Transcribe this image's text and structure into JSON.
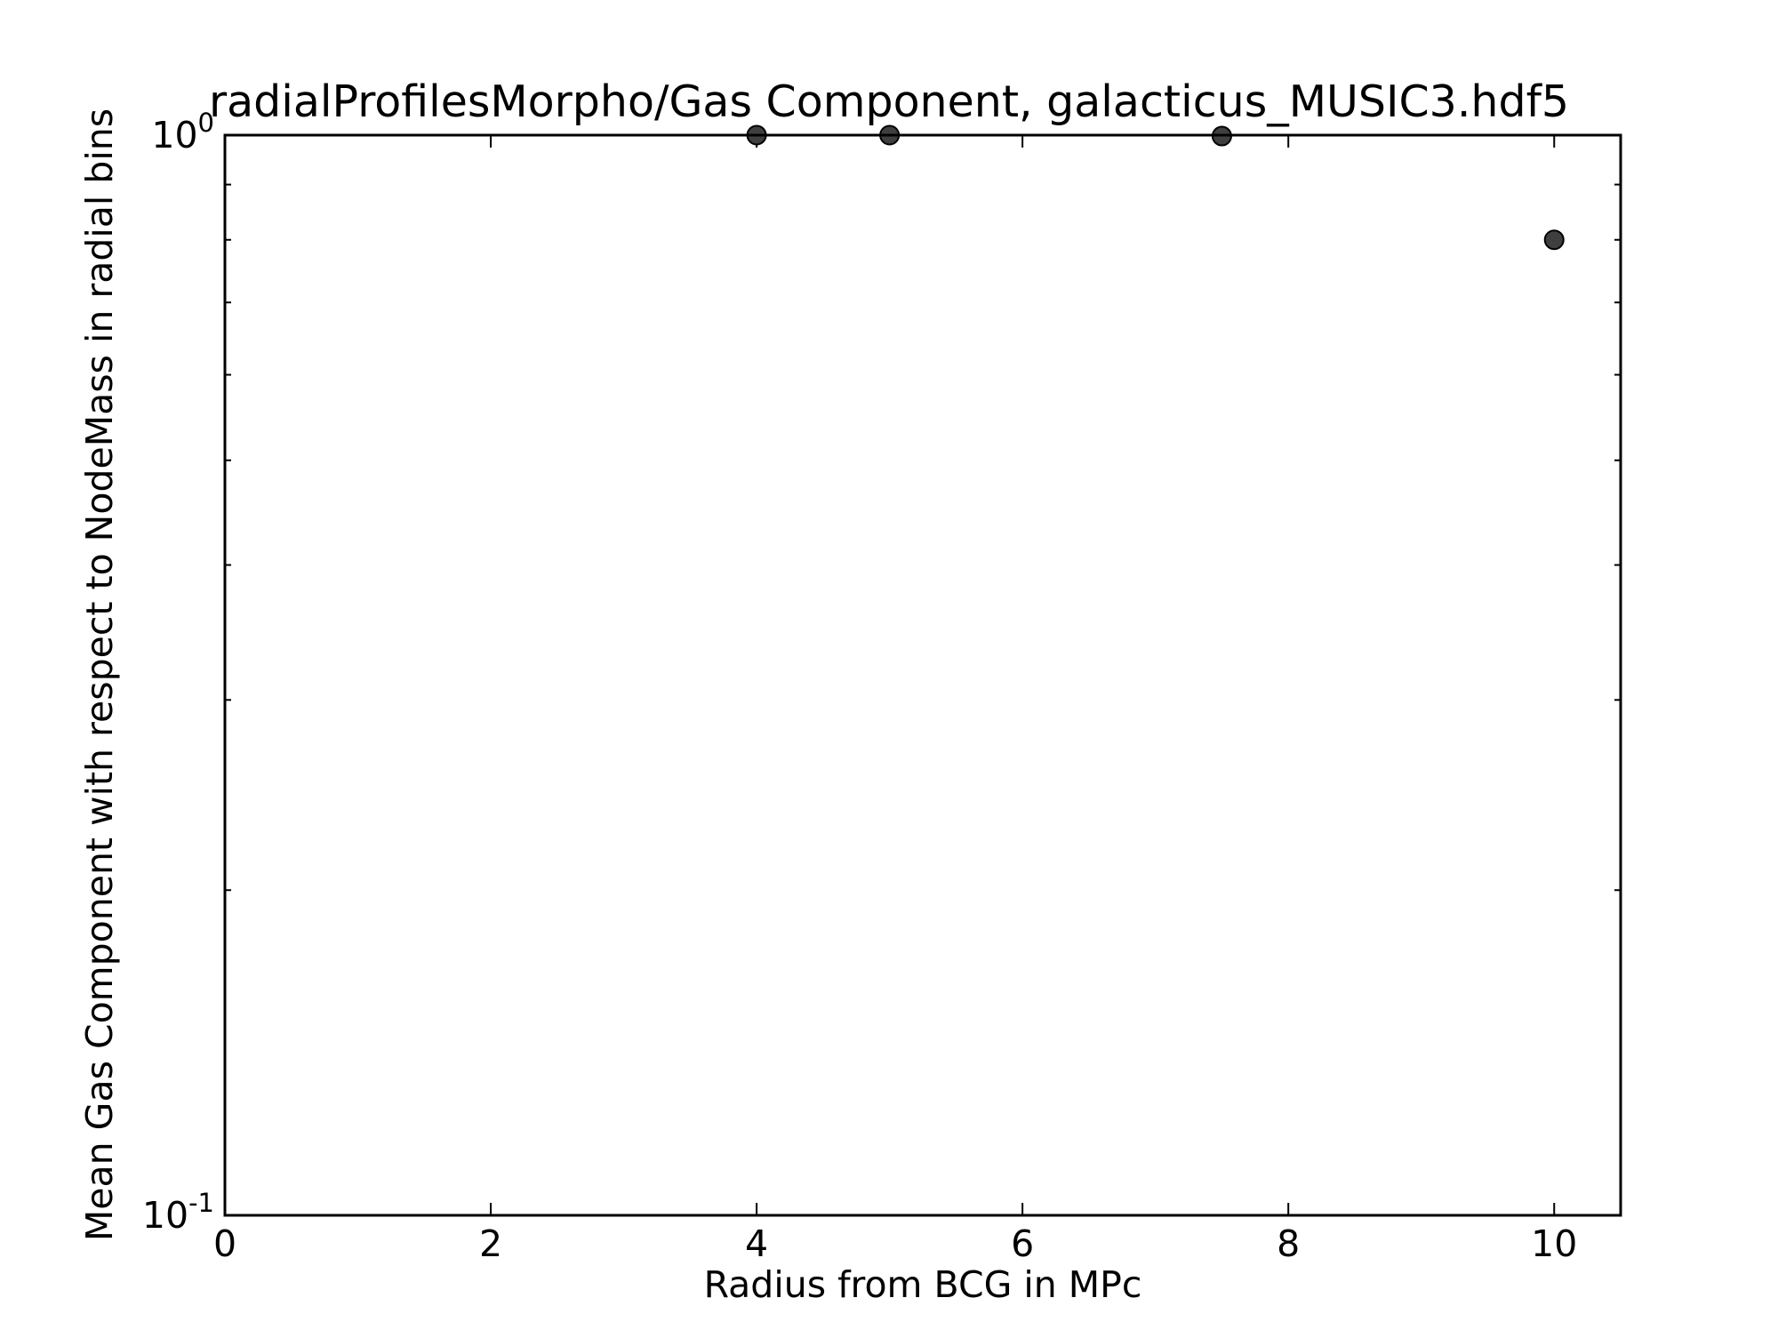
{
  "chart_data": {
    "type": "scatter",
    "title": "radialProfilesMorpho/Gas Component, galacticus_MUSIC3.hdf5",
    "xlabel": "Radius from BCG in MPc",
    "ylabel": "Mean Gas Component with respect to NodeMass in radial bins",
    "xlim": [
      0,
      10.5
    ],
    "ylim": [
      0.1,
      1.0
    ],
    "yscale": "log",
    "grid": false,
    "x_ticks": [
      {
        "value": 0,
        "label": "0"
      },
      {
        "value": 2,
        "label": "2"
      },
      {
        "value": 4,
        "label": "4"
      },
      {
        "value": 6,
        "label": "6"
      },
      {
        "value": 8,
        "label": "8"
      },
      {
        "value": 10,
        "label": "10"
      }
    ],
    "y_major_ticks": [
      {
        "value": 0.1,
        "base": "10",
        "exp": "-1"
      },
      {
        "value": 1.0,
        "base": "10",
        "exp": "0"
      }
    ],
    "y_minor_ticks": [
      0.2,
      0.3,
      0.4,
      0.5,
      0.6,
      0.7,
      0.8,
      0.9
    ],
    "marker_color": "#3f3f3f",
    "series": [
      {
        "x": [
          4,
          5,
          7.5,
          10
        ],
        "y": [
          1.0,
          1.0,
          0.998,
          0.8
        ]
      }
    ]
  }
}
